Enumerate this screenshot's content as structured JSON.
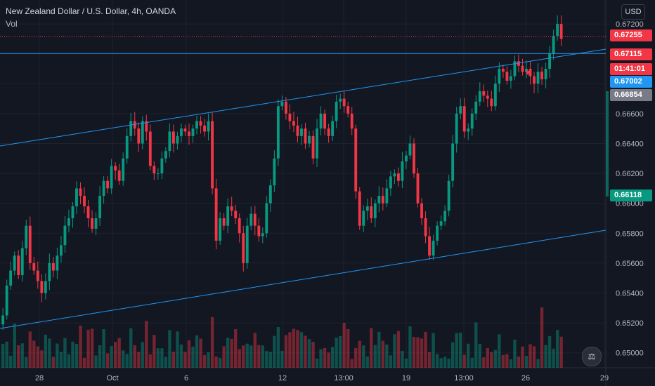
{
  "legend": {
    "symbol": "New Zealand Dollar / U.S. Dollar, 4h, OANDA",
    "volume_label": "Vol"
  },
  "currency_button": "USD",
  "price_tags": [
    {
      "value": "0.67255",
      "bg": "#f23645"
    },
    {
      "value": "0.67115",
      "bg": "#f23645"
    },
    {
      "value": "01:41:01",
      "bg": "#f23645"
    },
    {
      "value": "0.67002",
      "bg": "#2196f3"
    },
    {
      "value": "0.66854",
      "bg": "#787b86"
    },
    {
      "value": "0.66118",
      "bg": "#089981"
    }
  ],
  "colors": {
    "up": "#089981",
    "down": "#f23645",
    "line": "#2196f3",
    "grid": "#1e222d",
    "background": "#131722"
  },
  "chart_data": {
    "type": "candlestick",
    "ylim": [
      0.649,
      0.6736
    ],
    "y_ticks": [
      "0.67200",
      "0.67000",
      "0.66800",
      "0.66600",
      "0.66400",
      "0.66200",
      "0.66000",
      "0.65800",
      "0.65600",
      "0.65400",
      "0.65200",
      "0.65000"
    ],
    "x_ticks": [
      "28",
      "Oct",
      "6",
      "12",
      "13:00",
      "19",
      "13:00",
      "26",
      "29"
    ],
    "close_prices": [
      0.6525,
      0.6545,
      0.6555,
      0.6565,
      0.6552,
      0.657,
      0.6585,
      0.656,
      0.6555,
      0.6548,
      0.654,
      0.6548,
      0.656,
      0.6555,
      0.6565,
      0.6572,
      0.6585,
      0.659,
      0.6598,
      0.661,
      0.6605,
      0.6598,
      0.659,
      0.6583,
      0.659,
      0.6605,
      0.6615,
      0.661,
      0.6625,
      0.6622,
      0.6615,
      0.663,
      0.6645,
      0.6655,
      0.665,
      0.664,
      0.6655,
      0.6648,
      0.6625,
      0.662,
      0.662,
      0.663,
      0.6635,
      0.6648,
      0.664,
      0.6645,
      0.665,
      0.6648,
      0.6645,
      0.665,
      0.6655,
      0.6652,
      0.6648,
      0.6655,
      0.661,
      0.6575,
      0.659,
      0.6585,
      0.6598,
      0.6595,
      0.659,
      0.658,
      0.656,
      0.6585,
      0.6593,
      0.6585,
      0.6578,
      0.658,
      0.66,
      0.6612,
      0.663,
      0.6665,
      0.6668,
      0.666,
      0.6655,
      0.6652,
      0.6645,
      0.665,
      0.664,
      0.6645,
      0.663,
      0.665,
      0.666,
      0.665,
      0.6645,
      0.6655,
      0.6668,
      0.667,
      0.6665,
      0.666,
      0.665,
      0.6608,
      0.6585,
      0.6595,
      0.6598,
      0.659,
      0.66,
      0.6605,
      0.66,
      0.661,
      0.6618,
      0.662,
      0.6615,
      0.6628,
      0.6632,
      0.664,
      0.662,
      0.66,
      0.659,
      0.6578,
      0.6565,
      0.6575,
      0.6585,
      0.6588,
      0.6595,
      0.6615,
      0.664,
      0.666,
      0.6665,
      0.6648,
      0.665,
      0.666,
      0.6668,
      0.6675,
      0.6672,
      0.667,
      0.6665,
      0.668,
      0.669,
      0.6688,
      0.6682,
      0.6685,
      0.6695,
      0.6692,
      0.6688,
      0.669,
      0.6685,
      0.668,
      0.6688,
      0.6683,
      0.669,
      0.67,
      0.6712,
      0.672,
      0.671
    ]
  }
}
